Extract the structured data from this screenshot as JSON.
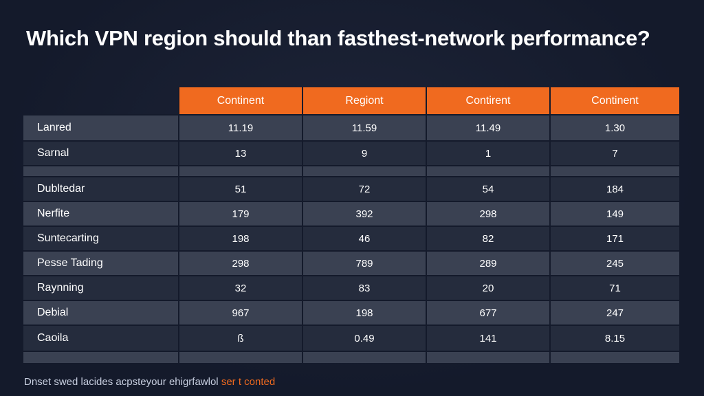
{
  "title": "Which VPN region should than fasthest-network performance?",
  "chart_data": {
    "type": "table",
    "columns": [
      "",
      "Continent",
      "Regiont",
      "Contirent",
      "Continent"
    ],
    "rows": [
      {
        "label": "Lanred",
        "values": [
          "11.19",
          "11.59",
          "11.49",
          "1.30"
        ]
      },
      {
        "label": "Sarnal",
        "values": [
          "13",
          "9",
          "1",
          "7"
        ]
      },
      {
        "label": "",
        "values": [
          "",
          "",
          "",
          ""
        ]
      },
      {
        "label": "Dubltedar",
        "values": [
          "51",
          "72",
          "54",
          "184"
        ]
      },
      {
        "label": "Nerfite",
        "values": [
          "179",
          "392",
          "298",
          "149"
        ]
      },
      {
        "label": "Suntecarting",
        "values": [
          "198",
          "46",
          "82",
          "171"
        ]
      },
      {
        "label": "Pesse Tading",
        "values": [
          "298",
          "789",
          "289",
          "245"
        ]
      },
      {
        "label": "Raynning",
        "values": [
          "32",
          "83",
          "20",
          "71"
        ]
      },
      {
        "label": "Debial",
        "values": [
          "967",
          "198",
          "677",
          "247"
        ]
      },
      {
        "label": "Caoila",
        "values": [
          "ß",
          "0.49",
          "141",
          "8.15"
        ]
      },
      {
        "label": "",
        "values": [
          "",
          "",
          "",
          ""
        ]
      }
    ]
  },
  "footnote": {
    "text": "Dnset swed lacides acpsteyour ehigrfawlol ",
    "accent": "ser t conted"
  },
  "colors": {
    "header": "#f06a1f",
    "row_light": "#3a4152",
    "row_dark": "#252c3d",
    "background": "#141a2b"
  }
}
